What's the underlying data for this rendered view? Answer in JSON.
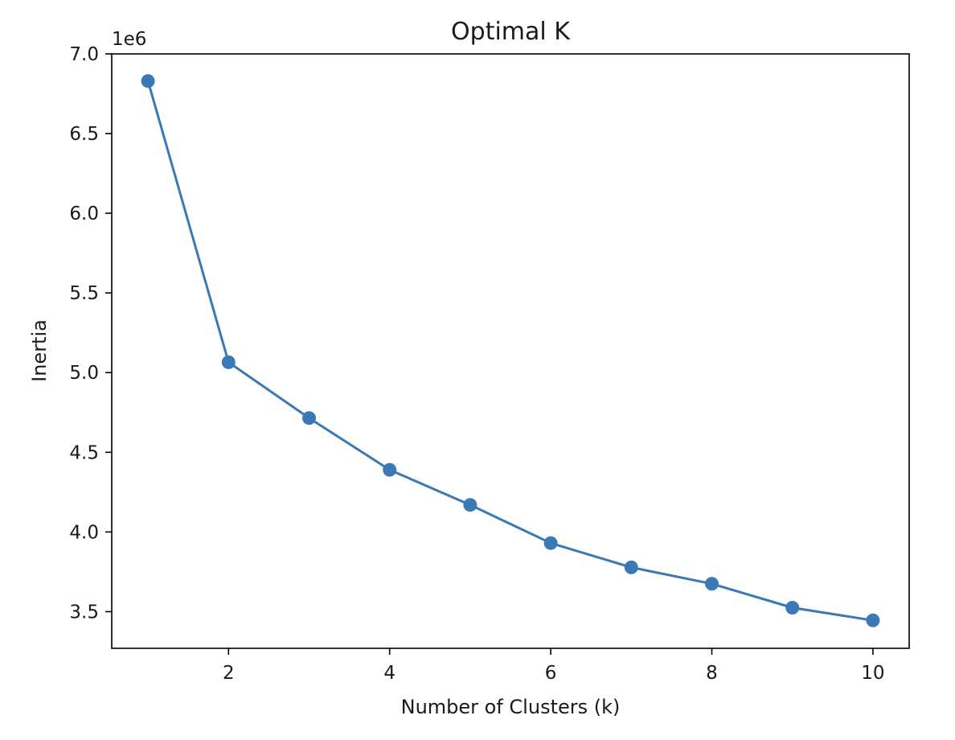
{
  "chart_data": {
    "type": "line",
    "title": "Optimal K",
    "xlabel": "Number of Clusters (k)",
    "ylabel": "Inertia",
    "y_offset_label": "1e6",
    "x": [
      1,
      2,
      3,
      4,
      5,
      6,
      7,
      8,
      9,
      10
    ],
    "series": [
      {
        "values": [
          6830000,
          5065000,
          4715000,
          4390000,
          4170000,
          3930000,
          3778000,
          3675000,
          3525000,
          3445000
        ],
        "color": "#3a78b6",
        "marker": "circle"
      }
    ],
    "xlim": [
      0.55,
      10.45
    ],
    "ylim": [
      3.27,
      7.0
    ],
    "y_scale": 1000000,
    "x_ticks": [
      2,
      4,
      6,
      8,
      10
    ],
    "x_tick_labels": [
      "2",
      "4",
      "6",
      "8",
      "10"
    ],
    "y_ticks": [
      3.5,
      4.0,
      4.5,
      5.0,
      5.5,
      6.0,
      6.5,
      7.0
    ],
    "y_tick_labels": [
      "3.5",
      "4.0",
      "4.5",
      "5.0",
      "5.5",
      "6.0",
      "6.5",
      "7.0"
    ],
    "grid": false,
    "legend": "none"
  }
}
